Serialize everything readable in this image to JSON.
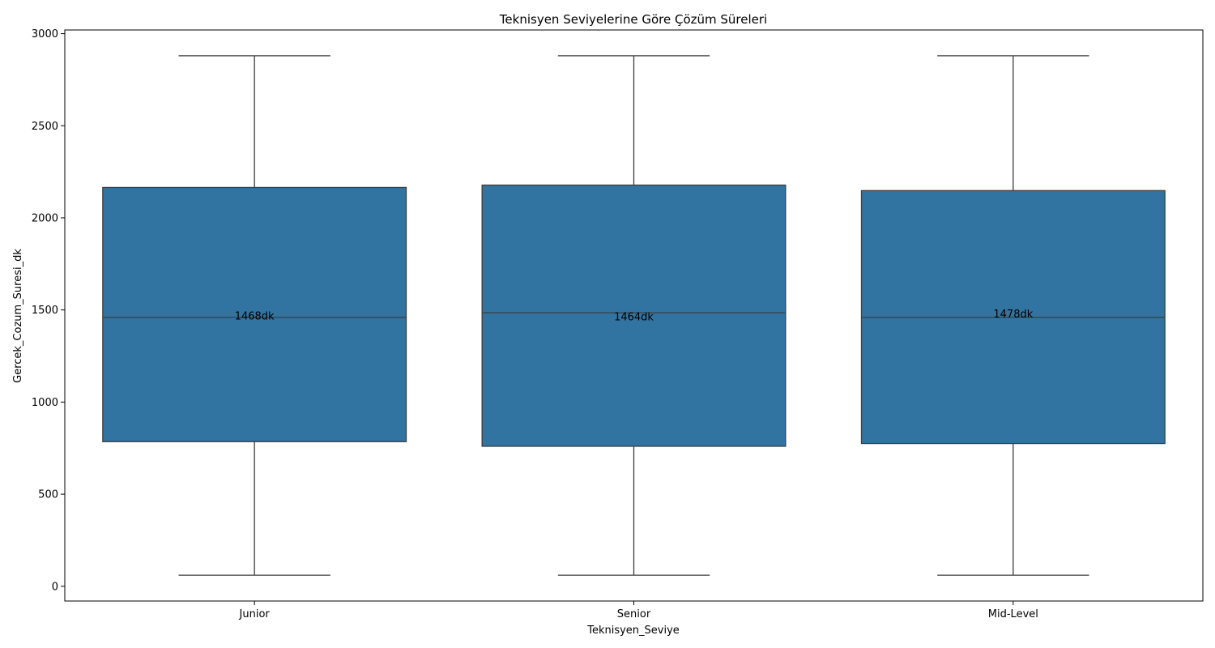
{
  "chart_data": {
    "type": "box",
    "title": "Teknisyen Seviyelerine Göre Çözüm Süreleri",
    "xlabel": "Teknisyen_Seviye",
    "ylabel": "Gercek_Cozum_Suresi_dk",
    "ylim": [
      -80,
      3020
    ],
    "yticks": [
      0,
      500,
      1000,
      1500,
      2000,
      2500,
      3000
    ],
    "grid": false,
    "box_color": "#3274a1",
    "line_color": "#3d3d3d",
    "categories": [
      "Junior",
      "Senior",
      "Mid-Level"
    ],
    "boxes": [
      {
        "category": "Junior",
        "whisker_low": 60,
        "q1": 785,
        "median": 1460,
        "q3": 2165,
        "whisker_high": 2880,
        "label": "1468dk",
        "label_value": 1468
      },
      {
        "category": "Senior",
        "whisker_low": 60,
        "q1": 760,
        "median": 1485,
        "q3": 2178,
        "whisker_high": 2880,
        "label": "1464dk",
        "label_value": 1464
      },
      {
        "category": "Mid-Level",
        "whisker_low": 60,
        "q1": 775,
        "median": 1460,
        "q3": 2148,
        "whisker_high": 2880,
        "label": "1478dk",
        "label_value": 1478
      }
    ]
  }
}
